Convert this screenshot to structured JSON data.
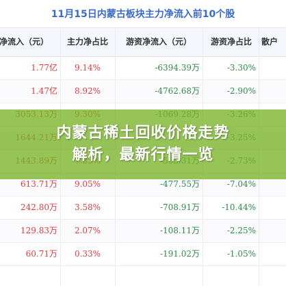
{
  "table": {
    "title": "11月15日内蒙古板块主力净流入前10个股",
    "headers": [
      "净流入（元）",
      "主力净占比",
      "游资净流入（元）",
      "游资净占比",
      "散户"
    ],
    "rows": [
      {
        "net_inflow": "1.77亿",
        "main_ratio": "9.14%",
        "hot_inflow": "-6394.39万",
        "hot_ratio": "-3.30%"
      },
      {
        "net_inflow": "1.47亿",
        "main_ratio": "8.92%",
        "hot_inflow": "-4762.68万",
        "hot_ratio": "-2.90%"
      },
      {
        "net_inflow": "3053.13万",
        "main_ratio": "9.30%",
        "hot_inflow": "-1069.28万",
        "hot_ratio": "-3.26%"
      },
      {
        "net_inflow": "1644.21万",
        "main_ratio": "",
        "hot_inflow": "",
        "hot_ratio": "-3.25%"
      },
      {
        "net_inflow": "1443.89万",
        "main_ratio": "7.83%",
        "hot_inflow": "-503.31万",
        "hot_ratio": "-2.73%"
      },
      {
        "net_inflow": "613.71万",
        "main_ratio": "9.05%",
        "hot_inflow": "-477.55万",
        "hot_ratio": "-7.04%"
      },
      {
        "net_inflow": "242.80万",
        "main_ratio": "3.58%",
        "hot_inflow": "-708.91万",
        "hot_ratio": "-10.44%"
      },
      {
        "net_inflow": "129.83万",
        "main_ratio": "2.07%",
        "hot_inflow": "-108.11万",
        "hot_ratio": "-2.25%"
      },
      {
        "net_inflow": "60.71万",
        "main_ratio": "0.33%",
        "hot_inflow": "-191.02万",
        "hot_ratio": "-1.05%"
      }
    ]
  },
  "banner": {
    "line1": "内蒙古稀土回收价格走势",
    "line2": "解析，最新行情一览"
  },
  "colors": {
    "title": "#3a6bc9",
    "positive": "#e03c3c",
    "negative": "#2e8b4a",
    "banner": "#78b428"
  }
}
